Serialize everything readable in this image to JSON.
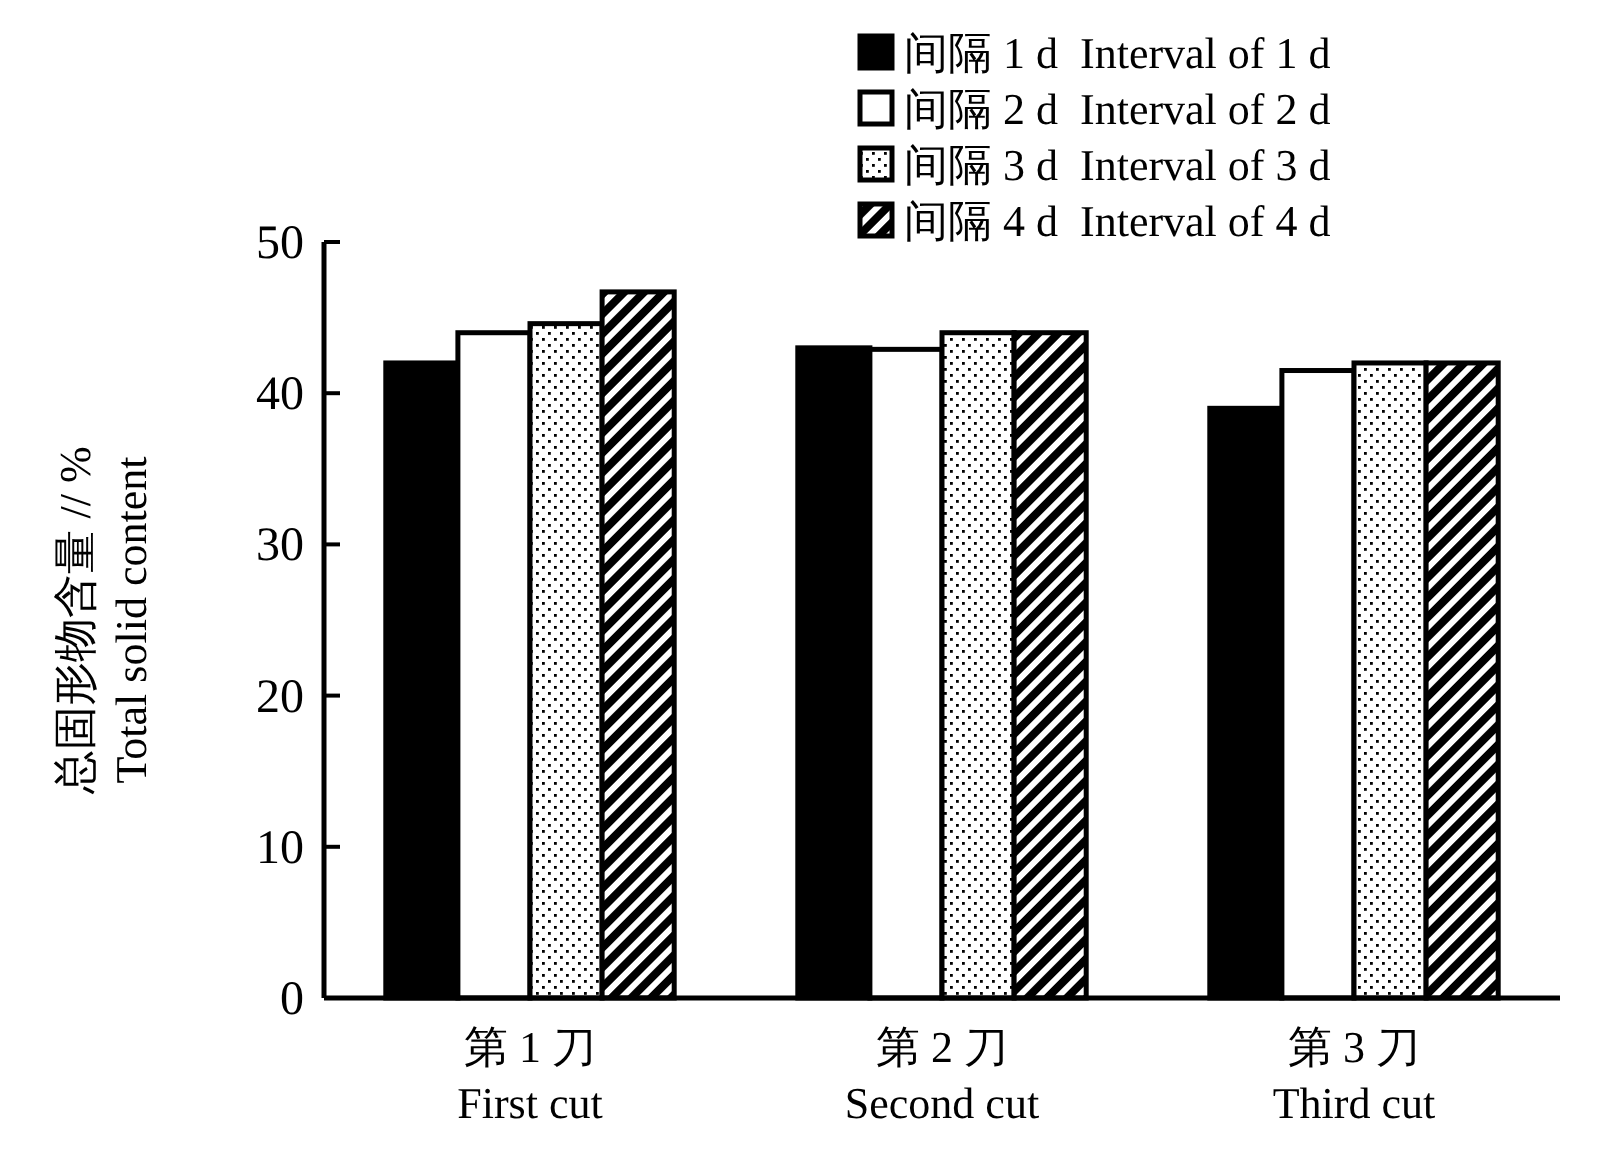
{
  "chart_data": {
    "type": "bar",
    "ylabel": "总固形物含量 // %\nTotal solid content",
    "categories": [
      "第 1 刀\nFirst cut",
      "第 2 刀\nSecond cut",
      "第 3 刀\nThird cut"
    ],
    "series": [
      {
        "name": "间隔 1 d  Interval of 1 d",
        "color": "#000000",
        "values": [
          42,
          43,
          39
        ]
      },
      {
        "name": "间隔 2 d  Interval of 2 d",
        "color": "#ffffff",
        "values": [
          44,
          42.9,
          41.5
        ]
      },
      {
        "name": "间隔 3 d  Interval of 3 d",
        "color": "#000000",
        "values": [
          44.6,
          44,
          42
        ]
      },
      {
        "name": "间隔 4 d  Interval of 4 d",
        "color": "#000000",
        "values": [
          46.7,
          44,
          42
        ]
      }
    ],
    "ylim": [
      0,
      50
    ],
    "yticks": [
      0,
      10,
      20,
      30,
      40,
      50
    ],
    "grid": false,
    "legend": "top right"
  }
}
